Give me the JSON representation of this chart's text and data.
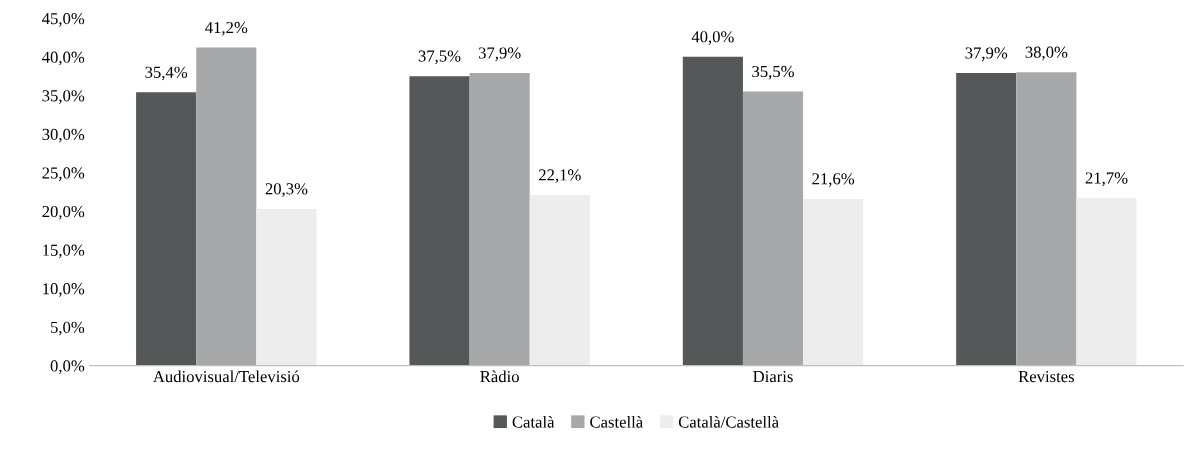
{
  "chart_data": {
    "type": "bar",
    "categories": [
      "Audiovisual/Televisió",
      "Ràdio",
      "Diaris",
      "Revistes"
    ],
    "series": [
      {
        "name": "Català",
        "color": "#545859",
        "values": [
          35.4,
          37.5,
          40.0,
          37.9
        ],
        "value_labels": [
          "35,4%",
          "37,5%",
          "40,0%",
          "37,9%"
        ]
      },
      {
        "name": "Castellà",
        "color": "#a6a8a9",
        "values": [
          41.2,
          37.9,
          35.5,
          38.0
        ],
        "value_labels": [
          "41,2%",
          "37,9%",
          "35,5%",
          "38,0%"
        ]
      },
      {
        "name": "Català/Castellà",
        "color": "#ededed",
        "values": [
          20.3,
          22.1,
          21.6,
          21.7
        ],
        "value_labels": [
          "20,3%",
          "22,1%",
          "21,6%",
          "21,7%"
        ]
      }
    ],
    "ylim": [
      0,
      45
    ],
    "yticks": [
      {
        "value": 0,
        "label": "0,0%"
      },
      {
        "value": 5,
        "label": "5,0%"
      },
      {
        "value": 10,
        "label": "10,0%"
      },
      {
        "value": 15,
        "label": "15,0%"
      },
      {
        "value": 20,
        "label": "20,0%"
      },
      {
        "value": 25,
        "label": "25,0%"
      },
      {
        "value": 30,
        "label": "30,0%"
      },
      {
        "value": 35,
        "label": "35,0%"
      },
      {
        "value": 40,
        "label": "40,0%"
      },
      {
        "value": 45,
        "label": "45,0%"
      }
    ],
    "grid": false,
    "legend": "bottom"
  }
}
